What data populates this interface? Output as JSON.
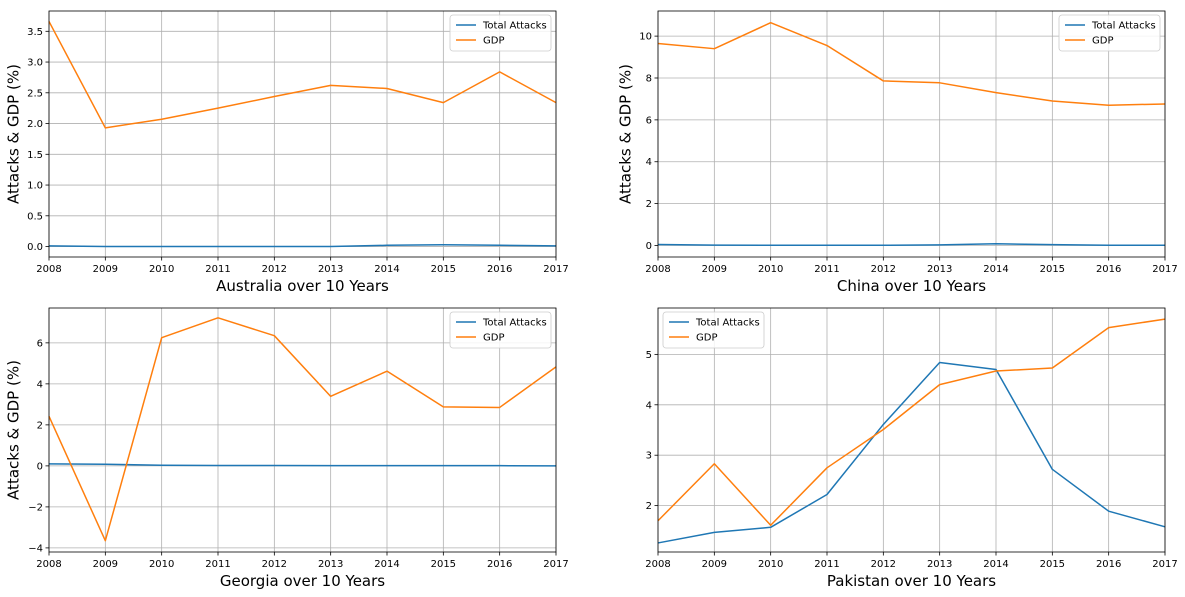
{
  "colors": {
    "attacks": "#1f77b4",
    "gdp": "#ff7f0e",
    "grid": "#b0b0b0",
    "axis": "#000000"
  },
  "chart_data": [
    {
      "type": "line",
      "xlabel": "Australia over 10 Years",
      "ylabel": "Attacks & GDP (%)",
      "x": [
        2008,
        2009,
        2010,
        2011,
        2012,
        2013,
        2014,
        2015,
        2016,
        2017
      ],
      "xlim": [
        2008,
        2017
      ],
      "ylim": [
        -0.17,
        3.83
      ],
      "yticks": [
        0.0,
        0.5,
        1.0,
        1.5,
        2.0,
        2.5,
        3.0,
        3.5
      ],
      "ytick_labels": [
        "0.0",
        "0.5",
        "1.0",
        "1.5",
        "2.0",
        "2.5",
        "3.0",
        "3.5"
      ],
      "legend": "top-right",
      "grid": true,
      "series": [
        {
          "name": "Total Attacks",
          "color": "#1f77b4",
          "values": [
            0.01,
            0.0,
            0.0,
            0.0,
            0.0,
            0.0,
            0.02,
            0.03,
            0.02,
            0.01
          ]
        },
        {
          "name": "GDP",
          "color": "#ff7f0e",
          "values": [
            3.66,
            1.93,
            2.07,
            2.25,
            2.44,
            2.62,
            2.57,
            2.34,
            2.84,
            2.34
          ]
        }
      ]
    },
    {
      "type": "line",
      "xlabel": "China over 10 Years",
      "ylabel": "Attacks & GDP (%)",
      "x": [
        2008,
        2009,
        2010,
        2011,
        2012,
        2013,
        2014,
        2015,
        2016,
        2017
      ],
      "xlim": [
        2008,
        2017
      ],
      "ylim": [
        -0.55,
        11.2
      ],
      "yticks": [
        0,
        2,
        4,
        6,
        8,
        10
      ],
      "ytick_labels": [
        "0",
        "2",
        "4",
        "6",
        "8",
        "10"
      ],
      "legend": "top-right",
      "grid": true,
      "series": [
        {
          "name": "Total Attacks",
          "color": "#1f77b4",
          "values": [
            0.05,
            0.02,
            0.01,
            0.01,
            0.01,
            0.03,
            0.08,
            0.04,
            0.01,
            0.01
          ]
        },
        {
          "name": "GDP",
          "color": "#ff7f0e",
          "values": [
            9.65,
            9.4,
            10.64,
            9.55,
            7.86,
            7.77,
            7.3,
            6.9,
            6.7,
            6.76
          ]
        }
      ]
    },
    {
      "type": "line",
      "xlabel": "Georgia over 10 Years",
      "ylabel": "Attacks & GDP (%)",
      "x": [
        2008,
        2009,
        2010,
        2011,
        2012,
        2013,
        2014,
        2015,
        2016,
        2017
      ],
      "xlim": [
        2008,
        2017
      ],
      "ylim": [
        -4.2,
        7.7
      ],
      "yticks": [
        -4,
        -2,
        0,
        2,
        4,
        6
      ],
      "ytick_labels": [
        "−4",
        "−2",
        "0",
        "2",
        "4",
        "6"
      ],
      "legend": "top-right",
      "grid": true,
      "series": [
        {
          "name": "Total Attacks",
          "color": "#1f77b4",
          "values": [
            0.1,
            0.08,
            0.03,
            0.02,
            0.02,
            0.01,
            0.01,
            0.01,
            0.01,
            0.0
          ]
        },
        {
          "name": "GDP",
          "color": "#ff7f0e",
          "values": [
            2.42,
            -3.65,
            6.25,
            7.22,
            6.35,
            3.39,
            4.62,
            2.88,
            2.85,
            4.83
          ]
        }
      ]
    },
    {
      "type": "line",
      "xlabel": "Pakistan over 10 Years",
      "ylabel": "",
      "x": [
        2008,
        2009,
        2010,
        2011,
        2012,
        2013,
        2014,
        2015,
        2016,
        2017
      ],
      "xlim": [
        2008,
        2017
      ],
      "ylim": [
        1.08,
        5.92
      ],
      "yticks": [
        2,
        3,
        4,
        5
      ],
      "ytick_labels": [
        "2",
        "3",
        "4",
        "5"
      ],
      "legend": "top-left",
      "grid": true,
      "series": [
        {
          "name": "Total Attacks",
          "color": "#1f77b4",
          "values": [
            1.26,
            1.47,
            1.57,
            2.22,
            3.61,
            4.84,
            4.7,
            2.72,
            1.89,
            1.58
          ]
        },
        {
          "name": "GDP",
          "color": "#ff7f0e",
          "values": [
            1.7,
            2.83,
            1.61,
            2.75,
            3.51,
            4.4,
            4.67,
            4.73,
            5.53,
            5.7
          ]
        }
      ]
    }
  ]
}
